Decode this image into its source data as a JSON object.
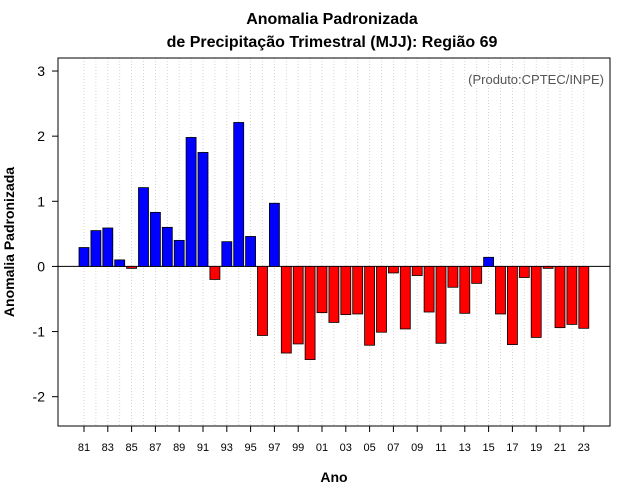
{
  "chart_data": {
    "type": "bar",
    "title_line1": "Anomalia Padronizada",
    "title_line2": "de Precipitação Trimestral (MJJ): Região 69",
    "xlabel": "Ano",
    "ylabel": "Anomalia Padronizada",
    "source": "(Produto:CPTEC/INPE)",
    "ylim": [
      -2.45,
      3.2
    ],
    "yticks": [
      -2,
      -1,
      0,
      1,
      2,
      3
    ],
    "years": [
      1981,
      1982,
      1983,
      1984,
      1985,
      1986,
      1987,
      1988,
      1989,
      1990,
      1991,
      1992,
      1993,
      1994,
      1995,
      1996,
      1997,
      1998,
      1999,
      2000,
      2001,
      2002,
      2003,
      2004,
      2005,
      2006,
      2007,
      2008,
      2009,
      2010,
      2011,
      2012,
      2013,
      2014,
      2015,
      2016,
      2017,
      2018,
      2019,
      2020,
      2021,
      2022,
      2023
    ],
    "xtick_labels": [
      "81",
      "83",
      "85",
      "87",
      "89",
      "91",
      "93",
      "95",
      "97",
      "99",
      "01",
      "03",
      "05",
      "07",
      "09",
      "11",
      "13",
      "15",
      "17",
      "19",
      "21",
      "23"
    ],
    "values": [
      0.29,
      0.55,
      0.59,
      0.1,
      -0.03,
      1.21,
      0.83,
      0.6,
      0.4,
      1.98,
      1.75,
      -0.2,
      0.38,
      2.21,
      0.46,
      -1.06,
      0.97,
      -1.33,
      -1.19,
      -1.43,
      -0.71,
      -0.86,
      -0.74,
      -0.73,
      -1.21,
      -1.01,
      -0.1,
      -0.96,
      -0.14,
      -0.7,
      -1.18,
      -0.32,
      -0.72,
      -0.26,
      0.14,
      -0.73,
      -1.2,
      -0.17,
      -1.09,
      -0.03,
      -0.94,
      -0.89,
      -0.95
    ],
    "colors": {
      "positive": "#0000ff",
      "negative": "#ff0000",
      "stroke": "#000000",
      "grid": "#cccccc"
    }
  }
}
